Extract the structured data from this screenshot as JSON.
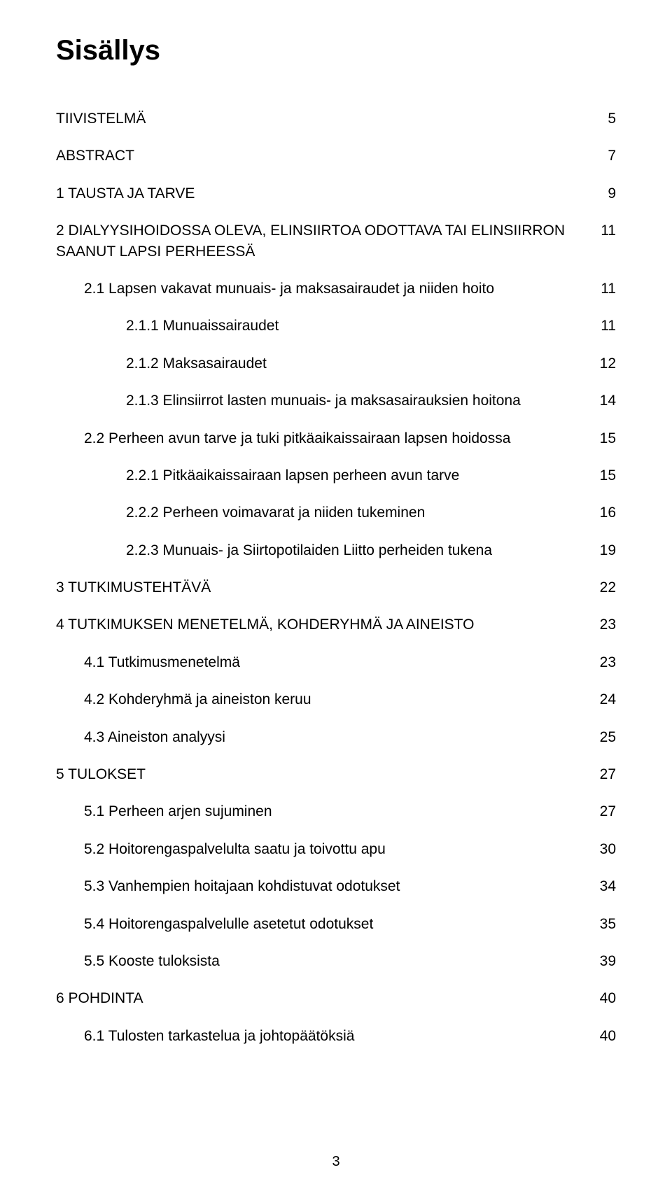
{
  "title": "Sisällys",
  "page_number": "3",
  "colors": {
    "text": "#000000",
    "background": "#ffffff"
  },
  "typography": {
    "title_fontsize": 40,
    "body_fontsize": 21,
    "font_family": "Arial"
  },
  "items": [
    {
      "level": 0,
      "text": "TIIVISTELMÄ",
      "page": "5",
      "gap_after": true
    },
    {
      "level": 0,
      "text": "ABSTRACT",
      "page": "7",
      "gap_after": true
    },
    {
      "level": 0,
      "text": "1  TAUSTA JA TARVE",
      "page": "9",
      "gap_after": true
    },
    {
      "level": 0,
      "text": "2  DIALYYSIHOIDOSSA OLEVA, ELINSIIRTOA ODOTTAVA TAI ELINSIIRRON SAANUT LAPSI PERHEESSÄ",
      "page": "11",
      "gap_after": true
    },
    {
      "level": 1,
      "text": "2.1  Lapsen vakavat munuais- ja maksasairaudet ja niiden hoito",
      "page": "11",
      "gap_after": true
    },
    {
      "level": 2,
      "text": "2.1.1   Munuaissairaudet",
      "page": "11",
      "gap_after": true
    },
    {
      "level": 2,
      "text": "2.1.2   Maksasairaudet",
      "page": "12",
      "gap_after": true
    },
    {
      "level": 2,
      "text": "2.1.3   Elinsiirrot lasten munuais- ja maksasairauksien hoitona",
      "page": "14",
      "gap_after": true
    },
    {
      "level": 1,
      "text": "2.2  Perheen avun tarve ja tuki pitkäaikaissairaan lapsen hoidossa",
      "page": "15",
      "gap_after": true
    },
    {
      "level": 2,
      "text": "2.2.1   Pitkäaikaissairaan lapsen perheen avun tarve",
      "page": "15",
      "gap_after": true
    },
    {
      "level": 2,
      "text": "2.2.2   Perheen voimavarat ja niiden tukeminen",
      "page": "16",
      "gap_after": true
    },
    {
      "level": 2,
      "text": "2.2.3   Munuais- ja Siirtopotilaiden Liitto perheiden tukena",
      "page": "19",
      "gap_after": true
    },
    {
      "level": 0,
      "text": "3  TUTKIMUSTEHTÄVÄ",
      "page": "22",
      "gap_after": true
    },
    {
      "level": 0,
      "text": "4  TUTKIMUKSEN MENETELMÄ, KOHDERYHMÄ JA AINEISTO",
      "page": "23",
      "gap_after": true
    },
    {
      "level": 1,
      "text": "4.1  Tutkimusmenetelmä",
      "page": "23",
      "gap_after": true
    },
    {
      "level": 1,
      "text": "4.2  Kohderyhmä ja aineiston keruu",
      "page": "24",
      "gap_after": true
    },
    {
      "level": 1,
      "text": "4.3  Aineiston analyysi",
      "page": "25",
      "gap_after": true
    },
    {
      "level": 0,
      "text": "5  TULOKSET",
      "page": "27",
      "gap_after": true
    },
    {
      "level": 1,
      "text": "5.1  Perheen arjen sujuminen",
      "page": "27",
      "gap_after": true
    },
    {
      "level": 1,
      "text": "5.2  Hoitorengaspalvelulta saatu ja toivottu apu",
      "page": "30",
      "gap_after": true
    },
    {
      "level": 1,
      "text": "5.3  Vanhempien hoitajaan kohdistuvat odotukset",
      "page": "34",
      "gap_after": true
    },
    {
      "level": 1,
      "text": "5.4  Hoitorengaspalvelulle asetetut odotukset",
      "page": "35",
      "gap_after": true
    },
    {
      "level": 1,
      "text": "5.5  Kooste tuloksista",
      "page": "39",
      "gap_after": true
    },
    {
      "level": 0,
      "text": "6  POHDINTA",
      "page": "40",
      "gap_after": true
    },
    {
      "level": 1,
      "text": "6.1  Tulosten tarkastelua ja johtopäätöksiä",
      "page": "40",
      "gap_after": false
    }
  ]
}
